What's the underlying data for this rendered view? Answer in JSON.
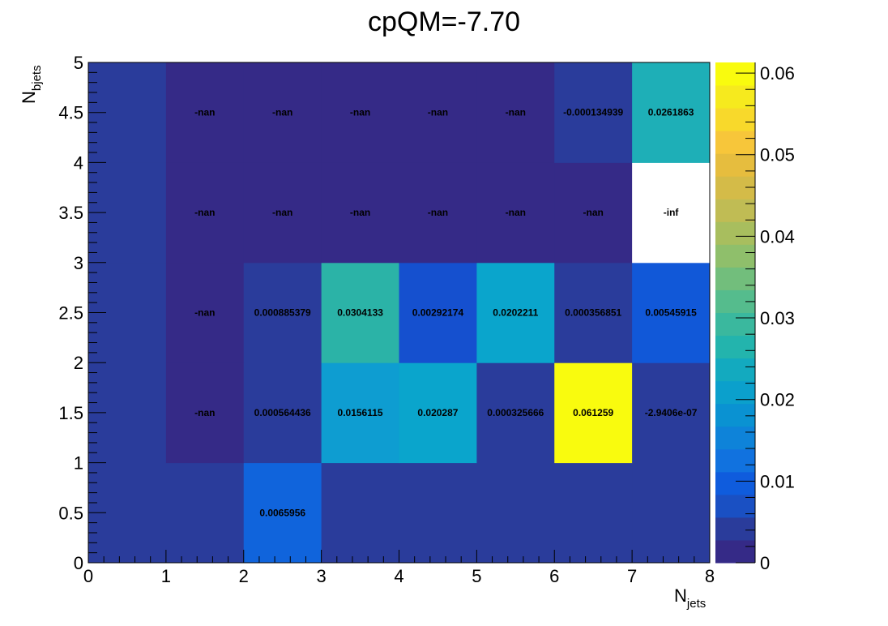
{
  "chart_data": {
    "type": "heatmap",
    "title": "cpQM=-7.70",
    "xlabel": {
      "base": "N",
      "sub": "jets"
    },
    "ylabel": {
      "base": "N",
      "sub": "bjets"
    },
    "xlim": [
      0,
      8
    ],
    "ylim": [
      0,
      5
    ],
    "x_ticks": [
      "0",
      "1",
      "2",
      "3",
      "4",
      "5",
      "6",
      "7",
      "8"
    ],
    "y_ticks": [
      "0",
      "0.5",
      "1",
      "1.5",
      "2",
      "2.5",
      "3",
      "3.5",
      "4",
      "4.5",
      "5"
    ],
    "x_bins": [
      [
        0,
        1
      ],
      [
        1,
        2
      ],
      [
        2,
        3
      ],
      [
        3,
        4
      ],
      [
        4,
        5
      ],
      [
        5,
        6
      ],
      [
        6,
        7
      ],
      [
        7,
        8
      ]
    ],
    "y_bins": [
      [
        0,
        1
      ],
      [
        1,
        2
      ],
      [
        2,
        3
      ],
      [
        3,
        4
      ],
      [
        4,
        5
      ]
    ],
    "colorbar": {
      "min": 0,
      "max": 0.0613,
      "ticks": [
        "0",
        "0.01",
        "0.02",
        "0.03",
        "0.04",
        "0.05",
        "0.06"
      ],
      "palette": [
        "#352a87",
        "#2a3c9b",
        "#1a50c3",
        "#0f5cdd",
        "#1172df",
        "#0e83d9",
        "#0a92d2",
        "#0ba0cc",
        "#13aabf",
        "#23b4ad",
        "#3ab89e",
        "#55bc8d",
        "#72be7c",
        "#8fbf6b",
        "#a8be5e",
        "#c0bc54",
        "#d4bb48",
        "#e6bd3e",
        "#f7c63a",
        "#f8d92b",
        "#f6ea1e",
        "#f9fb0e"
      ]
    },
    "cells": [
      {
        "x": 0,
        "y": 0,
        "value": 0,
        "color": "#2a3c9b",
        "label": ""
      },
      {
        "x": 1,
        "y": 0,
        "value": 0,
        "color": "#2a3c9b",
        "label": ""
      },
      {
        "x": 2,
        "y": 0,
        "value": 0.0065956,
        "color": "#1064dc",
        "label": "0.0065956"
      },
      {
        "x": 3,
        "y": 0,
        "value": 0,
        "color": "#2a3c9b",
        "label": ""
      },
      {
        "x": 4,
        "y": 0,
        "value": 0,
        "color": "#2a3c9b",
        "label": ""
      },
      {
        "x": 5,
        "y": 0,
        "value": 0,
        "color": "#2a3c9b",
        "label": ""
      },
      {
        "x": 6,
        "y": 0,
        "value": 0,
        "color": "#2a3c9b",
        "label": ""
      },
      {
        "x": 7,
        "y": 0,
        "value": 0,
        "color": "#2a3c9b",
        "label": ""
      },
      {
        "x": 0,
        "y": 1,
        "value": 0,
        "color": "#2a3c9b",
        "label": ""
      },
      {
        "x": 1,
        "y": 1,
        "value": null,
        "color": "#352a87",
        "label": "-nan"
      },
      {
        "x": 2,
        "y": 1,
        "value": 0.000564436,
        "color": "#2a3c9b",
        "label": "0.000564436"
      },
      {
        "x": 3,
        "y": 1,
        "value": 0.0156115,
        "color": "#0e9dd1",
        "label": "0.0156115"
      },
      {
        "x": 4,
        "y": 1,
        "value": 0.020287,
        "color": "#0aa5cc",
        "label": "0.020287"
      },
      {
        "x": 5,
        "y": 1,
        "value": 0.000325666,
        "color": "#2a3c9b",
        "label": "0.000325666"
      },
      {
        "x": 6,
        "y": 1,
        "value": 0.061259,
        "color": "#f9fb0e",
        "label": "0.061259"
      },
      {
        "x": 7,
        "y": 1,
        "value": -2.9406e-07,
        "color": "#2a3c9b",
        "label": "-2.9406e-07"
      },
      {
        "x": 0,
        "y": 2,
        "value": 0,
        "color": "#2a3c9b",
        "label": ""
      },
      {
        "x": 1,
        "y": 2,
        "value": null,
        "color": "#352a87",
        "label": "-nan"
      },
      {
        "x": 2,
        "y": 2,
        "value": 0.000885379,
        "color": "#2a3c9b",
        "label": "0.000885379"
      },
      {
        "x": 3,
        "y": 2,
        "value": 0.0304133,
        "color": "#2bb3a7",
        "label": "0.0304133"
      },
      {
        "x": 4,
        "y": 2,
        "value": 0.00292174,
        "color": "#1550cf",
        "label": "0.00292174"
      },
      {
        "x": 5,
        "y": 2,
        "value": 0.0202211,
        "color": "#0aa5cc",
        "label": "0.0202211"
      },
      {
        "x": 6,
        "y": 2,
        "value": 0.000356851,
        "color": "#2a3c9b",
        "label": "0.000356851"
      },
      {
        "x": 7,
        "y": 2,
        "value": 0.00545915,
        "color": "#1158d8",
        "label": "0.00545915"
      },
      {
        "x": 0,
        "y": 3,
        "value": 0,
        "color": "#2a3c9b",
        "label": ""
      },
      {
        "x": 1,
        "y": 3,
        "value": null,
        "color": "#352a87",
        "label": "-nan"
      },
      {
        "x": 2,
        "y": 3,
        "value": null,
        "color": "#352a87",
        "label": "-nan"
      },
      {
        "x": 3,
        "y": 3,
        "value": null,
        "color": "#352a87",
        "label": "-nan"
      },
      {
        "x": 4,
        "y": 3,
        "value": null,
        "color": "#352a87",
        "label": "-nan"
      },
      {
        "x": 5,
        "y": 3,
        "value": null,
        "color": "#352a87",
        "label": "-nan"
      },
      {
        "x": 6,
        "y": 3,
        "value": null,
        "color": "#352a87",
        "label": "-nan"
      },
      {
        "x": 7,
        "y": 3,
        "value": null,
        "color": "#ffffff",
        "label": "-inf"
      },
      {
        "x": 0,
        "y": 4,
        "value": 0,
        "color": "#2a3c9b",
        "label": ""
      },
      {
        "x": 1,
        "y": 4,
        "value": null,
        "color": "#352a87",
        "label": "-nan"
      },
      {
        "x": 2,
        "y": 4,
        "value": null,
        "color": "#352a87",
        "label": "-nan"
      },
      {
        "x": 3,
        "y": 4,
        "value": null,
        "color": "#352a87",
        "label": "-nan"
      },
      {
        "x": 4,
        "y": 4,
        "value": null,
        "color": "#352a87",
        "label": "-nan"
      },
      {
        "x": 5,
        "y": 4,
        "value": null,
        "color": "#352a87",
        "label": "-nan"
      },
      {
        "x": 6,
        "y": 4,
        "value": -0.000134939,
        "color": "#2a3c9b",
        "label": "-0.000134939"
      },
      {
        "x": 7,
        "y": 4,
        "value": 0.0261863,
        "color": "#1eafb7",
        "label": "0.0261863"
      }
    ]
  }
}
